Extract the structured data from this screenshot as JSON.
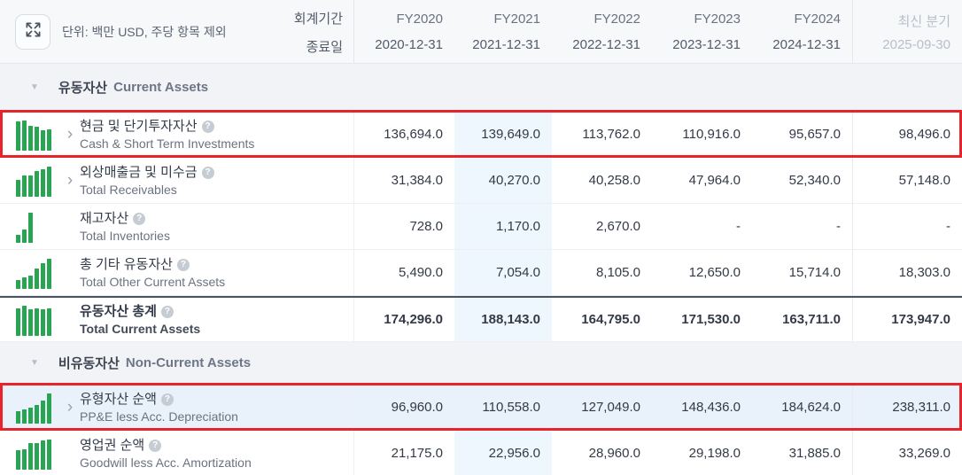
{
  "toolbar": {
    "unit_label": "단위: 백만 USD, 주당 항목 제외",
    "period_label": "회계기간",
    "end_date_label": "종료일"
  },
  "columns": [
    {
      "fy": "FY2020",
      "date": "2020-12-31",
      "latest": false
    },
    {
      "fy": "FY2021",
      "date": "2021-12-31",
      "latest": false
    },
    {
      "fy": "FY2022",
      "date": "2022-12-31",
      "latest": false
    },
    {
      "fy": "FY2023",
      "date": "2023-12-31",
      "latest": false
    },
    {
      "fy": "FY2024",
      "date": "2024-12-31",
      "latest": false
    },
    {
      "fy": "최신 분기",
      "date": "2025-09-30",
      "latest": true
    }
  ],
  "highlight_column_index": 1,
  "sections": [
    {
      "title_ko": "유동자산",
      "title_en": "Current Assets",
      "rows": [
        {
          "label_ko": "현금 및 단기투자자산",
          "label_en": "Cash & Short Term Investments",
          "expandable": true,
          "red_box": true,
          "total": false,
          "selected": false,
          "values": [
            "136,694.0",
            "139,649.0",
            "113,762.0",
            "110,916.0",
            "95,657.0",
            "98,496.0"
          ]
        },
        {
          "label_ko": "외상매출금 및 미수금",
          "label_en": "Total Receivables",
          "expandable": true,
          "red_box": false,
          "total": false,
          "selected": false,
          "values": [
            "31,384.0",
            "40,270.0",
            "40,258.0",
            "47,964.0",
            "52,340.0",
            "57,148.0"
          ]
        },
        {
          "label_ko": "재고자산",
          "label_en": "Total Inventories",
          "expandable": false,
          "red_box": false,
          "total": false,
          "selected": false,
          "values": [
            "728.0",
            "1,170.0",
            "2,670.0",
            "-",
            "-",
            "-"
          ]
        },
        {
          "label_ko": "총 기타 유동자산",
          "label_en": "Total Other Current Assets",
          "expandable": false,
          "red_box": false,
          "total": false,
          "selected": false,
          "values": [
            "5,490.0",
            "7,054.0",
            "8,105.0",
            "12,650.0",
            "15,714.0",
            "18,303.0"
          ]
        },
        {
          "label_ko": "유동자산 총계",
          "label_en": "Total Current Assets",
          "expandable": false,
          "red_box": false,
          "total": true,
          "selected": false,
          "values": [
            "174,296.0",
            "188,143.0",
            "164,795.0",
            "171,530.0",
            "163,711.0",
            "173,947.0"
          ]
        }
      ]
    },
    {
      "title_ko": "비유동자산",
      "title_en": "Non-Current Assets",
      "rows": [
        {
          "label_ko": "유형자산 순액",
          "label_en": "PP&E less Acc. Depreciation",
          "expandable": true,
          "red_box": true,
          "total": false,
          "selected": true,
          "values": [
            "96,960.0",
            "110,558.0",
            "127,049.0",
            "148,436.0",
            "184,624.0",
            "238,311.0"
          ]
        },
        {
          "label_ko": "영업권 순액",
          "label_en": "Goodwill less Acc. Amortization",
          "expandable": false,
          "red_box": false,
          "total": false,
          "selected": false,
          "values": [
            "21,175.0",
            "22,956.0",
            "28,960.0",
            "29,198.0",
            "31,885.0",
            "33,269.0"
          ]
        }
      ]
    }
  ],
  "icons": {
    "expand": "expand-icon",
    "triangle": "collapse-triangle-icon",
    "chevron": "›",
    "triangle_glyph": "▼",
    "help_glyph": "?"
  },
  "colors": {
    "bar_green": "#28a452",
    "red_highlight": "#e8232a",
    "column_highlight": "#eef6fe",
    "selected_row": "#e9f1fb",
    "header_bg": "#f7f8fa",
    "band_bg": "#f2f3f6"
  }
}
